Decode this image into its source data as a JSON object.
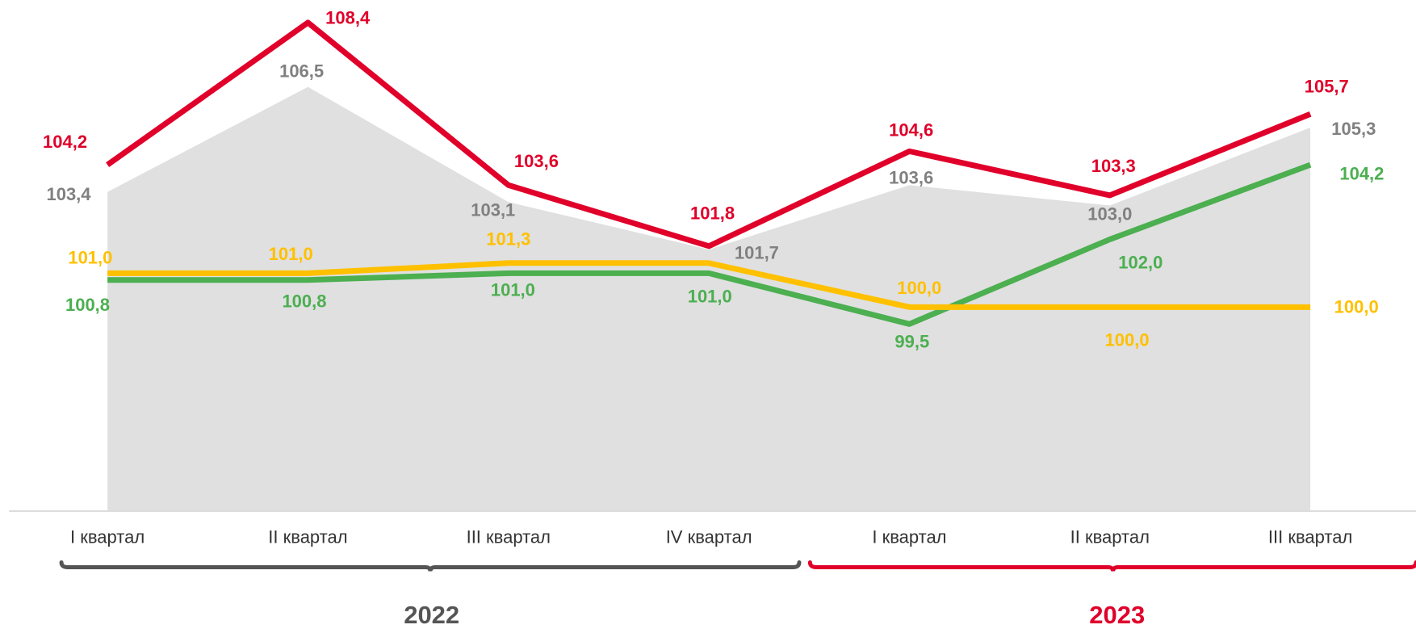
{
  "chart_data": {
    "type": "line",
    "categories": [
      "I квартал",
      "II квартал",
      "III квартал",
      "IV квартал",
      "I квартал",
      "II квартал",
      "III квартал"
    ],
    "ylim": [
      94,
      109
    ],
    "series": [
      {
        "kind": "area",
        "color": "#e0e0e0",
        "label_color": "#808080",
        "values": [
          103.4,
          106.5,
          103.1,
          101.7,
          103.6,
          103.0,
          105.3
        ],
        "value_labels": [
          "103,4",
          "106,5",
          "103,1",
          "101,7",
          "103,6",
          "103,0",
          "105,3"
        ]
      },
      {
        "kind": "line",
        "color": "#4caf50",
        "values": [
          100.8,
          100.8,
          101.0,
          101.0,
          99.5,
          102.0,
          104.2
        ],
        "value_labels": [
          "100,8",
          "100,8",
          "101,0",
          "101,0",
          "99,5",
          "102,0",
          "104,2"
        ]
      },
      {
        "kind": "line",
        "color": "#ffc000",
        "values": [
          101.0,
          101.0,
          101.3,
          101.3,
          100.0,
          100.0,
          100.0
        ],
        "value_labels": [
          "101,0",
          "101,0",
          "101,3",
          null,
          "100,0",
          "100,0",
          "100,0"
        ]
      },
      {
        "kind": "line",
        "color": "#e0002a",
        "values": [
          104.2,
          108.4,
          103.6,
          101.8,
          104.6,
          103.3,
          105.7
        ],
        "value_labels": [
          "104,2",
          "108,4",
          "103,6",
          "101,8",
          "104,6",
          "103,3",
          "105,7"
        ]
      }
    ],
    "groups": [
      {
        "label": "2022",
        "color": "#555555",
        "span": [
          0,
          3
        ]
      },
      {
        "label": "2023",
        "color": "#e0002a",
        "span": [
          4,
          6
        ]
      }
    ]
  }
}
